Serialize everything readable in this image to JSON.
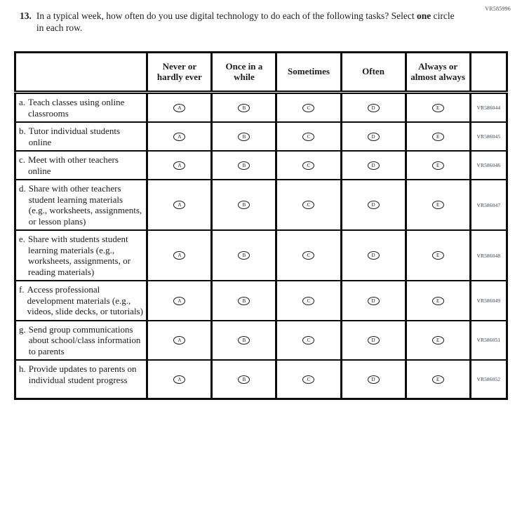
{
  "page": {
    "top_right_code": "VR585996"
  },
  "question": {
    "number": "13.",
    "text_before_bold": "In a typical week, how often do you use digital technology to do each of the following tasks? Select ",
    "bold_word": "one",
    "text_after_bold": " circle in each row."
  },
  "table": {
    "columns": [
      "Never or hardly ever",
      "Once in a while",
      "Sometimes",
      "Often",
      "Always or almost always"
    ],
    "option_letters": [
      "A",
      "B",
      "C",
      "D",
      "E"
    ],
    "rows": [
      {
        "label": "a.",
        "text": "Teach classes using online classrooms",
        "code": "VR586044"
      },
      {
        "label": "b.",
        "text": "Tutor individual students online",
        "code": "VR586045"
      },
      {
        "label": "c.",
        "text": "Meet with other teachers online",
        "code": "VR586046"
      },
      {
        "label": "d.",
        "text": "Share with other teachers student learning materials (e.g., worksheets, assignments, or lesson plans)",
        "code": "VR586047"
      },
      {
        "label": "e.",
        "text": "Share with students student learning materials (e.g., worksheets, assignments, or reading materials)",
        "code": "VR586048"
      },
      {
        "label": "f.",
        "text": "Access professional development materials (e.g., videos, slide decks, or tutorials)",
        "code": "VR586049"
      },
      {
        "label": "g.",
        "text": "Send group communications about school/class information to parents",
        "code": "VR586051"
      },
      {
        "label": "h.",
        "text": "Provide updates to parents on individual student progress",
        "code": "VR586052"
      }
    ]
  },
  "colors": {
    "text": "#1c1c1c",
    "border": "#0c0c0c",
    "code_text": "#39404e"
  }
}
